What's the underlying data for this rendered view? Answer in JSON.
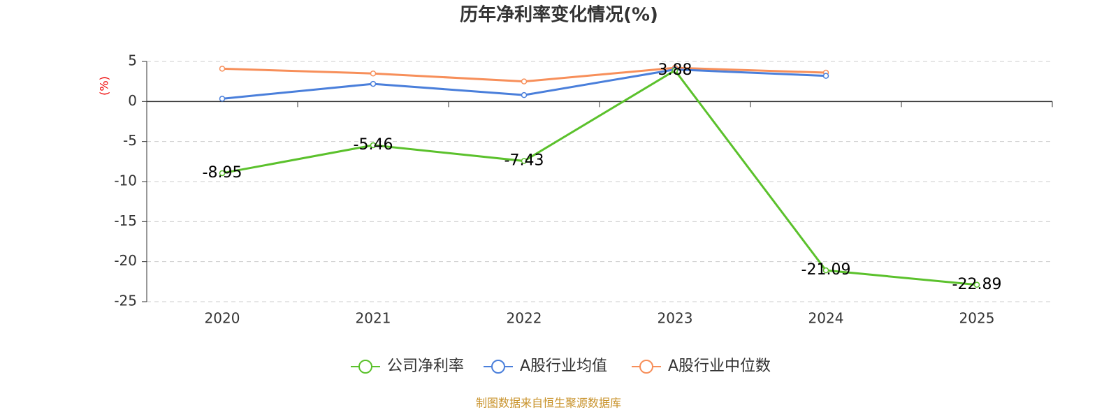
{
  "chart_data": {
    "type": "line",
    "title": "历年净利率变化情况(%)",
    "y_label": "(%)",
    "categories": [
      "2020",
      "2021",
      "2022",
      "2023",
      "2024",
      "2025"
    ],
    "series": [
      {
        "name": "公司净利率",
        "color": "#5bc12c",
        "values": [
          -8.95,
          -5.46,
          -7.43,
          3.88,
          -21.09,
          -22.89
        ],
        "data_labels": true
      },
      {
        "name": "A股行业均值",
        "color": "#4a7fdb",
        "values": [
          0.35,
          2.2,
          0.8,
          4.0,
          3.2,
          null
        ],
        "data_labels": false
      },
      {
        "name": "A股行业中位数",
        "color": "#f78f5a",
        "values": [
          4.1,
          3.5,
          2.5,
          4.2,
          3.6,
          null
        ],
        "data_labels": false
      }
    ],
    "ylim": [
      -25,
      5
    ],
    "yticks": [
      -25,
      -20,
      -15,
      -10,
      -5,
      0,
      5
    ],
    "grid": true,
    "legend": "bottom",
    "source": "制图数据来自恒生聚源数据库"
  }
}
